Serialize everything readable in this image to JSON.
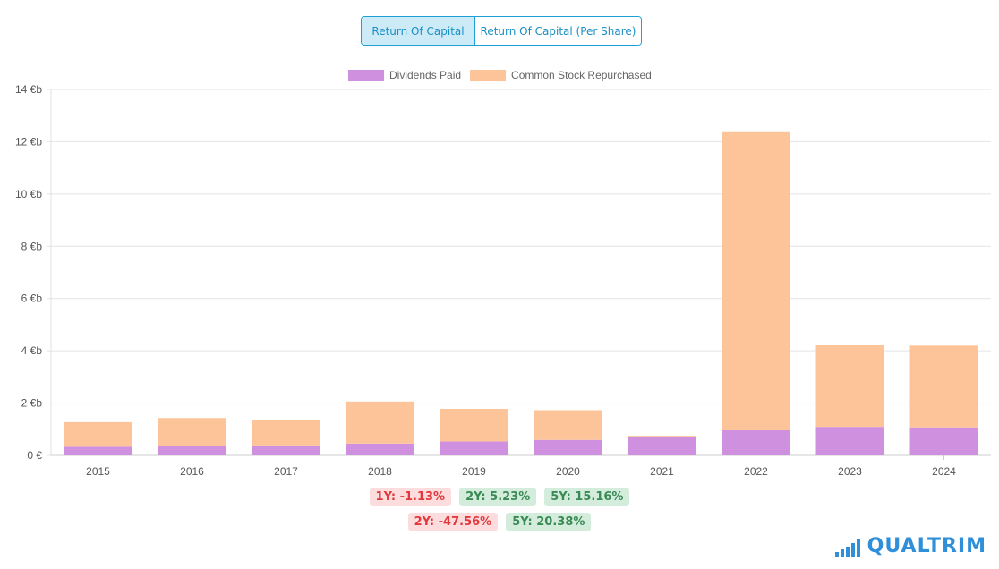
{
  "tabs": [
    {
      "label": "Return Of Capital",
      "active": true
    },
    {
      "label": "Return Of Capital (Per Share)",
      "active": false
    }
  ],
  "chart_data": {
    "type": "bar",
    "stacked": true,
    "categories": [
      "2015",
      "2016",
      "2017",
      "2018",
      "2019",
      "2020",
      "2021",
      "2022",
      "2023",
      "2024"
    ],
    "series": [
      {
        "name": "Dividends Paid",
        "color": "#d090e0",
        "values": [
          0.33,
          0.36,
          0.38,
          0.45,
          0.53,
          0.59,
          0.7,
          0.96,
          1.09,
          1.07
        ]
      },
      {
        "name": "Common Stock Repurchased",
        "color": "#fdc49a",
        "values": [
          0.94,
          1.07,
          0.97,
          1.61,
          1.25,
          1.14,
          0.05,
          11.44,
          3.12,
          3.13
        ]
      }
    ],
    "y_ticks": [
      "0 €",
      "2 €b",
      "4 €b",
      "6 €b",
      "8 €b",
      "10 €b",
      "12 €b",
      "14 €b"
    ],
    "ylim": [
      0,
      14
    ],
    "legend_position": "top",
    "grid": true
  },
  "growth_rows": [
    [
      {
        "label": "1Y: -1.13%",
        "tone": "negative"
      },
      {
        "label": "2Y: 5.23%",
        "tone": "positive"
      },
      {
        "label": "5Y: 15.16%",
        "tone": "positive"
      }
    ],
    [
      {
        "label": "2Y: -47.56%",
        "tone": "negative"
      },
      {
        "label": "5Y: 20.38%",
        "tone": "positive"
      }
    ]
  ],
  "brand": {
    "name": "QUALTRIM",
    "icon": "bar-chart-logo-icon",
    "color": "#2f8fd8"
  }
}
